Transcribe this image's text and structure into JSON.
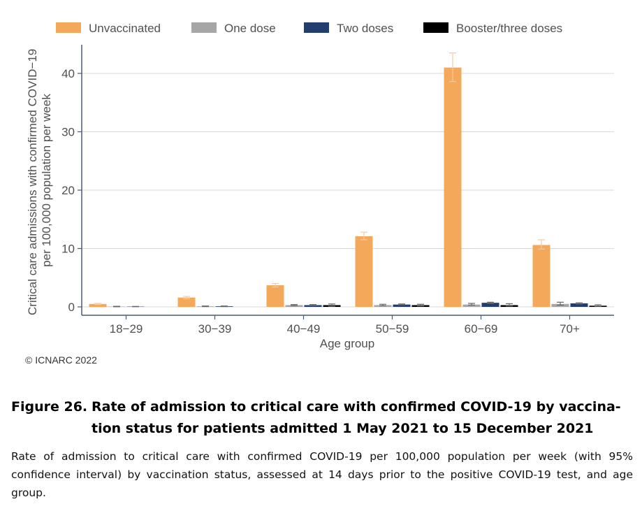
{
  "chart_data": {
    "type": "bar",
    "title": "",
    "xlabel": "Age group",
    "ylabel": "Critical care admissions with confirmed COVID-19 per 100,000 population per week",
    "ylabel_lines": [
      "Critical care admissions with confirmed COVID−19",
      "per 100,000 population per week"
    ],
    "ylim": [
      0,
      45
    ],
    "yticks": [
      0,
      10,
      20,
      30,
      40
    ],
    "categories": [
      "18−29",
      "30−39",
      "40−49",
      "50−59",
      "60−69",
      "70+"
    ],
    "legend_position": "top",
    "grid": "horizontal",
    "series": [
      {
        "name": "Unvaccinated",
        "color": "#F4A85A",
        "values": [
          0.5,
          1.6,
          3.7,
          12.1,
          41.0,
          10.6
        ],
        "ci_low": [
          0.4,
          1.4,
          3.4,
          11.5,
          38.6,
          9.9
        ],
        "ci_high": [
          0.6,
          1.8,
          4.0,
          12.8,
          43.5,
          11.5
        ]
      },
      {
        "name": "One dose",
        "color": "#A6A6A6",
        "values": [
          0.05,
          0.1,
          0.3,
          0.3,
          0.4,
          0.5
        ],
        "ci_low": [
          0.02,
          0.05,
          0.2,
          0.2,
          0.3,
          0.3
        ],
        "ci_high": [
          0.1,
          0.15,
          0.4,
          0.45,
          0.6,
          0.8
        ]
      },
      {
        "name": "Two doses",
        "color": "#233D6E",
        "values": [
          0.05,
          0.1,
          0.3,
          0.4,
          0.7,
          0.6
        ],
        "ci_low": [
          0.03,
          0.05,
          0.25,
          0.35,
          0.6,
          0.5
        ],
        "ci_high": [
          0.08,
          0.15,
          0.4,
          0.5,
          0.8,
          0.7
        ]
      },
      {
        "name": "Booster/three doses",
        "color": "#000000",
        "values": [
          0,
          0,
          0.3,
          0.3,
          0.3,
          0.2
        ],
        "ci_low": [
          0,
          0,
          0.1,
          0.15,
          0.15,
          0.1
        ],
        "ci_high": [
          0,
          0,
          0.5,
          0.45,
          0.55,
          0.35
        ]
      }
    ]
  },
  "copyright": "© ICNARC 2022",
  "figure": {
    "label": "Figure 26.",
    "title_line1": "Rate of admission to critical care with confirmed COVID-19 by vaccina-",
    "title_line2": "tion status for patients admitted 1 May 2021 to 15 December 2021",
    "caption": "Rate of admission to critical care with confirmed COVID-19 per 100,000 population per week (with 95% confidence interval) by vaccination status, assessed at 14 days prior to the positive COVID-19 test, and age group."
  }
}
